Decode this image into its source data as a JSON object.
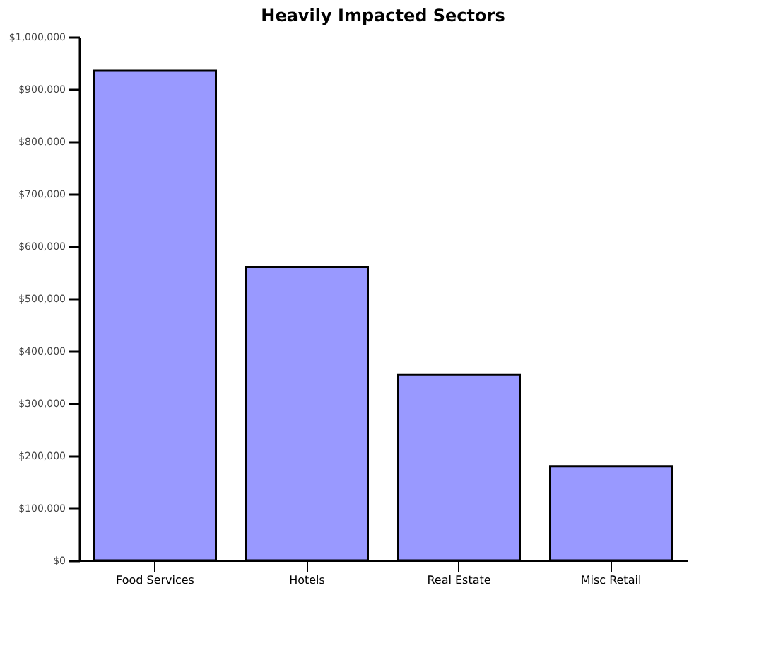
{
  "chart_data": {
    "type": "bar",
    "title": "Heavily Impacted Sectors",
    "categories": [
      "Food Services",
      "Hotels",
      "Real Estate",
      "Misc Retail"
    ],
    "values": [
      935000,
      560000,
      355000,
      180000
    ],
    "color": "#9999ff",
    "ylim": [
      0,
      1000000
    ],
    "yticks": [
      {
        "value": 0,
        "label": "$0"
      },
      {
        "value": 100000,
        "label": "$100,000"
      },
      {
        "value": 200000,
        "label": "$200,000"
      },
      {
        "value": 300000,
        "label": "$300,000"
      },
      {
        "value": 400000,
        "label": "$400,000"
      },
      {
        "value": 500000,
        "label": "$500,000"
      },
      {
        "value": 600000,
        "label": "$600,000"
      },
      {
        "value": 700000,
        "label": "$700,000"
      },
      {
        "value": 800000,
        "label": "$800,000"
      },
      {
        "value": 900000,
        "label": "$900,000"
      },
      {
        "value": 1000000,
        "label": "$1,000,000"
      }
    ],
    "grid": false
  }
}
